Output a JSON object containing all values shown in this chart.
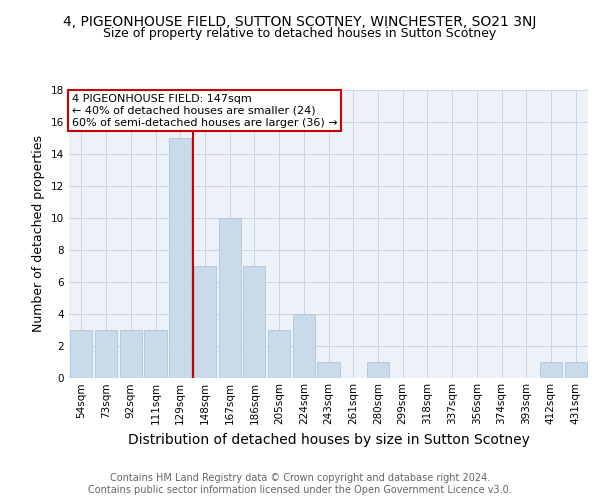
{
  "title": "4, PIGEONHOUSE FIELD, SUTTON SCOTNEY, WINCHESTER, SO21 3NJ",
  "subtitle": "Size of property relative to detached houses in Sutton Scotney",
  "xlabel": "Distribution of detached houses by size in Sutton Scotney",
  "ylabel": "Number of detached properties",
  "categories": [
    "54sqm",
    "73sqm",
    "92sqm",
    "111sqm",
    "129sqm",
    "148sqm",
    "167sqm",
    "186sqm",
    "205sqm",
    "224sqm",
    "243sqm",
    "261sqm",
    "280sqm",
    "299sqm",
    "318sqm",
    "337sqm",
    "356sqm",
    "374sqm",
    "393sqm",
    "412sqm",
    "431sqm"
  ],
  "values": [
    3,
    3,
    3,
    3,
    15,
    7,
    10,
    7,
    3,
    4,
    1,
    0,
    1,
    0,
    0,
    0,
    0,
    0,
    0,
    1,
    1
  ],
  "bar_color": "#c9daea",
  "bar_edge_color": "#aec6d8",
  "vline_x_index": 5,
  "vline_color": "#cc0000",
  "annotation_text": "4 PIGEONHOUSE FIELD: 147sqm\n← 40% of detached houses are smaller (24)\n60% of semi-detached houses are larger (36) →",
  "annotation_box_color": "#ffffff",
  "annotation_box_edge_color": "#cc0000",
  "ylim": [
    0,
    18
  ],
  "yticks": [
    0,
    2,
    4,
    6,
    8,
    10,
    12,
    14,
    16,
    18
  ],
  "footer": "Contains HM Land Registry data © Crown copyright and database right 2024.\nContains public sector information licensed under the Open Government Licence v3.0.",
  "title_fontsize": 10,
  "subtitle_fontsize": 9,
  "xlabel_fontsize": 10,
  "ylabel_fontsize": 9,
  "tick_fontsize": 7.5,
  "annotation_fontsize": 8,
  "footer_fontsize": 7,
  "grid_color": "#c8d4e4",
  "background_color": "#ffffff",
  "axes_background": "#edf2f9"
}
